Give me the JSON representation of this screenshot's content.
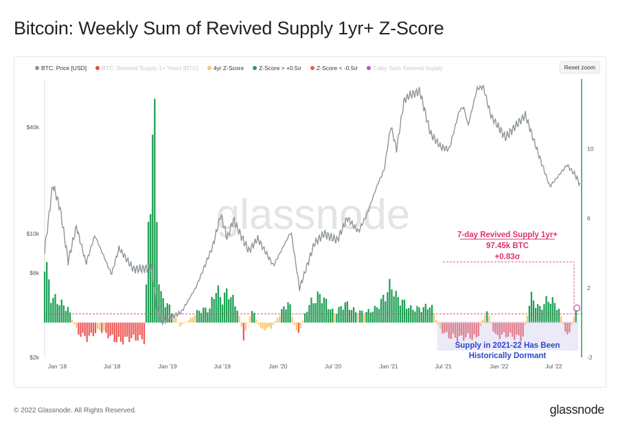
{
  "title": "Bitcoin: Weekly Sum of Revived Supply 1yr+ Z-Score",
  "reset_zoom": "Reset zoom",
  "watermark": "glassnode",
  "legend": [
    {
      "label": "BTC: Price [USD]",
      "color": "#8c9499",
      "dim": false
    },
    {
      "label": "BTC: Revived Supply 1+ Years [BTC]",
      "color": "#e8503a",
      "dim": true
    },
    {
      "label": "4yr Z-Score",
      "color": "#f7c76f",
      "dim": false
    },
    {
      "label": "Z-Score > +0.5σ",
      "color": "#1fa055",
      "dim": false
    },
    {
      "label": "Z-Score < -0.5σ",
      "color": "#ee5a5a",
      "dim": false
    },
    {
      "label": "7-day Sum Revived Supply",
      "color": "#c34fcf",
      "dim": true
    }
  ],
  "annotations": {
    "callout_line1": "7-day Revived Supply 1yr+",
    "callout_line2": "97.45k BTC",
    "callout_line3": "+0.83σ",
    "dormant_line1": "Supply in 2021-22 Has Been",
    "dormant_line2": "Historically Dormant"
  },
  "footer": {
    "copyright": "© 2022 Glassnode. All Rights Reserved.",
    "logo": "glassnode"
  },
  "chart_data": {
    "type": "line",
    "x_range": [
      "2017-11-20",
      "2022-10-01"
    ],
    "x_ticks": [
      "Jan '18",
      "Jul '18",
      "Jan '19",
      "Jul '19",
      "Jan '20",
      "Jul '20",
      "Jan '21",
      "Jul '21",
      "Jan '22",
      "Jul '22"
    ],
    "y_left": {
      "scale": "log",
      "range": [
        2000,
        75000
      ],
      "ticks": [
        "$2k",
        "$6k",
        "$10k",
        "$40k"
      ],
      "tick_values": [
        2000,
        6000,
        10000,
        40000
      ]
    },
    "y_right": {
      "scale": "linear",
      "range": [
        -2,
        14
      ],
      "ticks": [
        -2,
        2,
        6,
        10
      ]
    },
    "threshold_z": 0.5,
    "series": [
      {
        "name": "BTC: Price [USD]",
        "axis": "left",
        "color": "#8c9499",
        "points": [
          [
            "2017-11-20",
            8000
          ],
          [
            "2017-12-17",
            19000
          ],
          [
            "2018-01-10",
            14000
          ],
          [
            "2018-02-06",
            7000
          ],
          [
            "2018-03-05",
            11000
          ],
          [
            "2018-04-06",
            6800
          ],
          [
            "2018-05-05",
            9800
          ],
          [
            "2018-06-29",
            5900
          ],
          [
            "2018-07-24",
            8300
          ],
          [
            "2018-09-10",
            6300
          ],
          [
            "2018-11-10",
            6400
          ],
          [
            "2018-11-25",
            3800
          ],
          [
            "2018-12-15",
            3200
          ],
          [
            "2019-02-15",
            3600
          ],
          [
            "2019-04-05",
            5000
          ],
          [
            "2019-05-30",
            8500
          ],
          [
            "2019-06-26",
            12900
          ],
          [
            "2019-07-17",
            9400
          ],
          [
            "2019-08-06",
            12000
          ],
          [
            "2019-09-26",
            8000
          ],
          [
            "2019-10-26",
            9400
          ],
          [
            "2019-12-17",
            6600
          ],
          [
            "2020-02-13",
            10300
          ],
          [
            "2020-03-12",
            4900
          ],
          [
            "2020-04-30",
            8800
          ],
          [
            "2020-06-01",
            10000
          ],
          [
            "2020-07-15",
            9200
          ],
          [
            "2020-08-17",
            12300
          ],
          [
            "2020-09-23",
            10300
          ],
          [
            "2020-10-21",
            12900
          ],
          [
            "2020-11-25",
            19000
          ],
          [
            "2020-12-17",
            23000
          ],
          [
            "2021-01-08",
            41000
          ],
          [
            "2021-01-27",
            30000
          ],
          [
            "2021-02-21",
            57000
          ],
          [
            "2021-03-13",
            61000
          ],
          [
            "2021-04-14",
            64000
          ],
          [
            "2021-05-19",
            37000
          ],
          [
            "2021-06-22",
            31000
          ],
          [
            "2021-07-20",
            30000
          ],
          [
            "2021-08-23",
            50000
          ],
          [
            "2021-09-06",
            52000
          ],
          [
            "2021-09-21",
            41000
          ],
          [
            "2021-10-20",
            66000
          ],
          [
            "2021-11-10",
            68000
          ],
          [
            "2021-12-04",
            47000
          ],
          [
            "2022-01-22",
            35000
          ],
          [
            "2022-03-29",
            47000
          ],
          [
            "2022-05-12",
            28000
          ],
          [
            "2022-06-18",
            18500
          ],
          [
            "2022-08-14",
            24500
          ],
          [
            "2022-09-10",
            21500
          ],
          [
            "2022-09-26",
            19000
          ]
        ]
      },
      {
        "name": "4yr Z-Score",
        "axis": "right",
        "type": "bar",
        "color_rule": "green if > 0.5, red if < -0.5, else amber",
        "points": [
          [
            "2017-11-20",
            3.8
          ],
          [
            "2017-12-10",
            1.5
          ],
          [
            "2018-01-05",
            1.2
          ],
          [
            "2018-02-05",
            0.8
          ],
          [
            "2018-03-10",
            -0.6
          ],
          [
            "2018-04-10",
            -0.9
          ],
          [
            "2018-05-20",
            -0.4
          ],
          [
            "2018-06-25",
            -0.8
          ],
          [
            "2018-07-25",
            -1.1
          ],
          [
            "2018-08-25",
            -0.9
          ],
          [
            "2018-09-25",
            -0.9
          ],
          [
            "2018-10-15",
            -1.0
          ],
          [
            "2018-10-25",
            3.2
          ],
          [
            "2018-11-15",
            12.5
          ],
          [
            "2018-12-05",
            1.6
          ],
          [
            "2019-01-10",
            0.8
          ],
          [
            "2019-02-10",
            -0.2
          ],
          [
            "2019-03-10",
            0.1
          ],
          [
            "2019-04-15",
            0.7
          ],
          [
            "2019-05-20",
            0.8
          ],
          [
            "2019-06-10",
            2.0
          ],
          [
            "2019-06-28",
            1.3
          ],
          [
            "2019-07-20",
            1.8
          ],
          [
            "2019-08-20",
            0.8
          ],
          [
            "2019-09-10",
            -0.9
          ],
          [
            "2019-10-05",
            0.8
          ],
          [
            "2019-11-05",
            -0.4
          ],
          [
            "2019-12-10",
            -0.3
          ],
          [
            "2020-01-10",
            0.6
          ],
          [
            "2020-02-05",
            1.2
          ],
          [
            "2020-03-05",
            -0.8
          ],
          [
            "2020-04-10",
            1.0
          ],
          [
            "2020-05-20",
            1.6
          ],
          [
            "2020-07-05",
            0.5
          ],
          [
            "2020-08-10",
            1.1
          ],
          [
            "2020-09-15",
            0.6
          ],
          [
            "2020-10-20",
            0.6
          ],
          [
            "2020-11-20",
            0.8
          ],
          [
            "2020-12-15",
            1.4
          ],
          [
            "2021-01-10",
            2.2
          ],
          [
            "2021-01-25",
            1.5
          ],
          [
            "2021-02-15",
            1.2
          ],
          [
            "2021-03-15",
            0.8
          ],
          [
            "2021-04-20",
            0.8
          ],
          [
            "2021-05-20",
            1.0
          ],
          [
            "2021-06-20",
            -0.4
          ],
          [
            "2021-07-20",
            -0.8
          ],
          [
            "2021-08-20",
            -0.9
          ],
          [
            "2021-09-20",
            -0.8
          ],
          [
            "2021-10-20",
            -0.9
          ],
          [
            "2021-11-20",
            0.8
          ],
          [
            "2021-12-20",
            -0.8
          ],
          [
            "2022-01-20",
            -0.7
          ],
          [
            "2022-02-20",
            -0.8
          ],
          [
            "2022-03-20",
            -0.9
          ],
          [
            "2022-04-15",
            1.5
          ],
          [
            "2022-05-15",
            0.8
          ],
          [
            "2022-06-15",
            1.4
          ],
          [
            "2022-07-15",
            0.9
          ],
          [
            "2022-08-15",
            -0.9
          ],
          [
            "2022-09-15",
            0.83
          ]
        ]
      }
    ]
  }
}
